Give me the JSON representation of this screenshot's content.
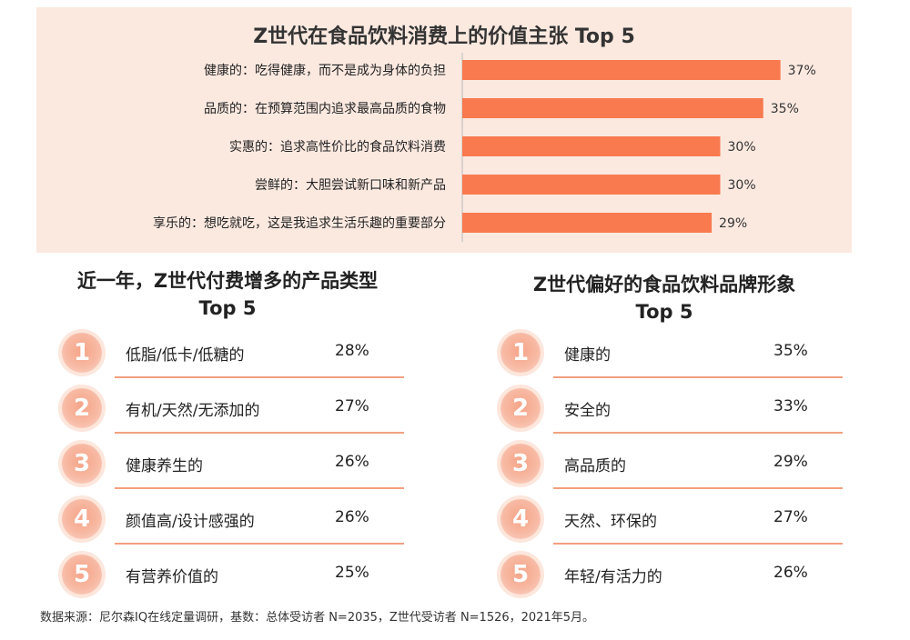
{
  "chart_data": [
    {
      "type": "bar",
      "orientation": "horizontal",
      "title": "Z世代在食品饮料消费上的价值主张 Top 5",
      "categories": [
        "健康的：吃得健康，而不是成为身体的负担",
        "品质的：在预算范围内追求最高品质的食物",
        "实惠的：追求高性价比的食品饮料消费",
        "尝鲜的：大胆尝试新口味和新产品",
        "享乐的：想吃就吃，这是我追求生活乐趣的重要部分"
      ],
      "values": [
        37,
        35,
        30,
        30,
        29
      ],
      "value_labels": [
        "37%",
        "35%",
        "30%",
        "30%",
        "29%"
      ],
      "xlim": [
        0,
        40
      ],
      "bar_color": "#f97a4f",
      "background_color": "#fbe9e0"
    },
    {
      "type": "table",
      "title_line1": "近一年，Z世代付费增多的产品类型",
      "title_line2": "Top 5",
      "rows": [
        {
          "rank": "1",
          "name": "低脂/低卡/低糖的",
          "value": "28%"
        },
        {
          "rank": "2",
          "name": "有机/天然/无添加的",
          "value": "27%"
        },
        {
          "rank": "3",
          "name": "健康养生的",
          "value": "26%"
        },
        {
          "rank": "4",
          "name": "颜值高/设计感强的",
          "value": "26%"
        },
        {
          "rank": "5",
          "name": "有营养价值的",
          "value": "25%"
        }
      ]
    },
    {
      "type": "table",
      "title_line1": "Z世代偏好的食品饮料品牌形象",
      "title_line2": "Top 5",
      "rows": [
        {
          "rank": "1",
          "name": "健康的",
          "value": "35%"
        },
        {
          "rank": "2",
          "name": "安全的",
          "value": "33%"
        },
        {
          "rank": "3",
          "name": "高品质的",
          "value": "29%"
        },
        {
          "rank": "4",
          "name": "天然、环保的",
          "value": "27%"
        },
        {
          "rank": "5",
          "name": "年轻/有活力的",
          "value": "26%"
        }
      ]
    }
  ],
  "footnote": "数据来源：尼尔森IQ在线定量调研，基数：总体受访者 N=2035，Z世代受访者 N=1526，2021年5月。",
  "colors": {
    "accent": "#f97a4f",
    "divider": "#f3a07f",
    "rank_circle": "#f7b09a"
  }
}
